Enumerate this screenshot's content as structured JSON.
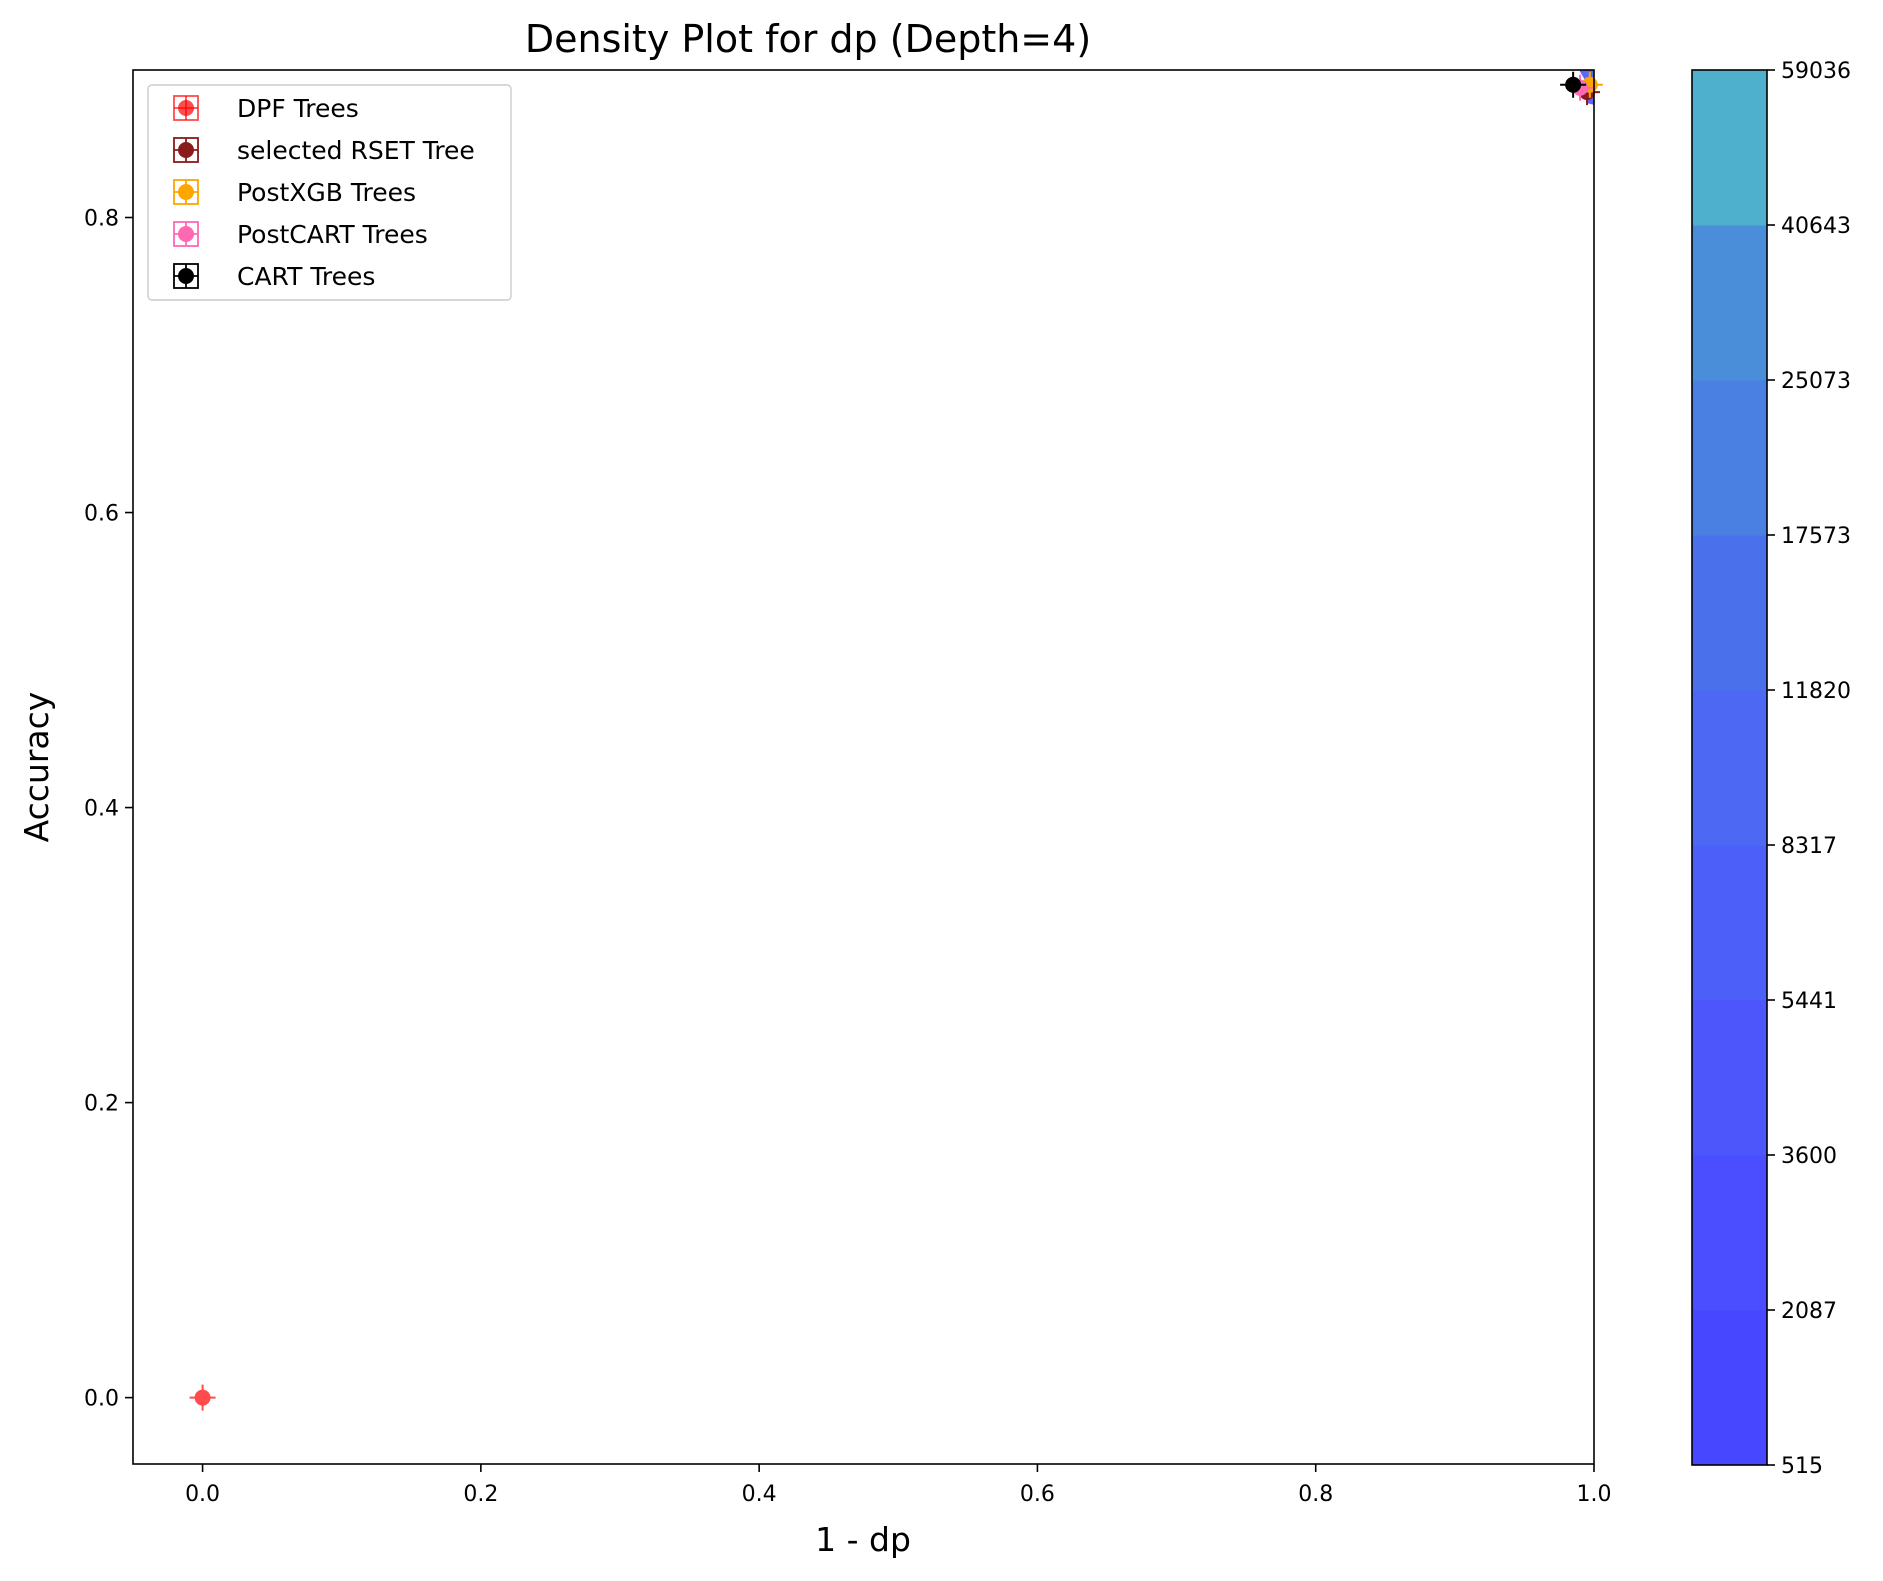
{
  "chart_data": {
    "type": "scatter",
    "title": "Density Plot for dp (Depth=4)",
    "xlabel": "1 - dp",
    "ylabel": "Accuracy",
    "xlim": [
      -0.05,
      1.0
    ],
    "ylim": [
      -0.045,
      0.9
    ],
    "xticks": [
      "0.0",
      "0.2",
      "0.4",
      "0.6",
      "0.8",
      "1.0"
    ],
    "yticks": [
      "0.0",
      "0.2",
      "0.4",
      "0.6",
      "0.8"
    ],
    "legend_position": "upper-left",
    "series": [
      {
        "name": "DPF Trees",
        "color": "#ff0000",
        "alpha": 0.7,
        "points": [
          [
            0.0,
            0.0
          ]
        ]
      },
      {
        "name": "selected RSET Tree",
        "color": "#8b1a1a",
        "points": [
          [
            0.995,
            0.885
          ]
        ]
      },
      {
        "name": "PostXGB Trees",
        "color": "#ffa500",
        "points": [
          [
            0.997,
            0.89
          ]
        ]
      },
      {
        "name": "PostCART Trees",
        "color": "#ff69b4",
        "points": [
          [
            0.99,
            0.888
          ]
        ]
      },
      {
        "name": "CART Trees",
        "color": "#000000",
        "points": [
          [
            0.985,
            0.89
          ]
        ]
      }
    ],
    "density": {
      "region": {
        "x": [
          0.985,
          1.0
        ],
        "y": [
          0.875,
          0.9
        ]
      },
      "colorbar": {
        "ticks": [
          "515",
          "2087",
          "3600",
          "5441",
          "8317",
          "11820",
          "17573",
          "25073",
          "40643",
          "59036"
        ],
        "colors": [
          "#4747ff",
          "#4a4efe",
          "#4c56fb",
          "#4d5ff9",
          "#4d68f3",
          "#4b70ec",
          "#4a80e2",
          "#4a8dd8",
          "#4eb0cc",
          "#4de5b0"
        ]
      }
    }
  }
}
